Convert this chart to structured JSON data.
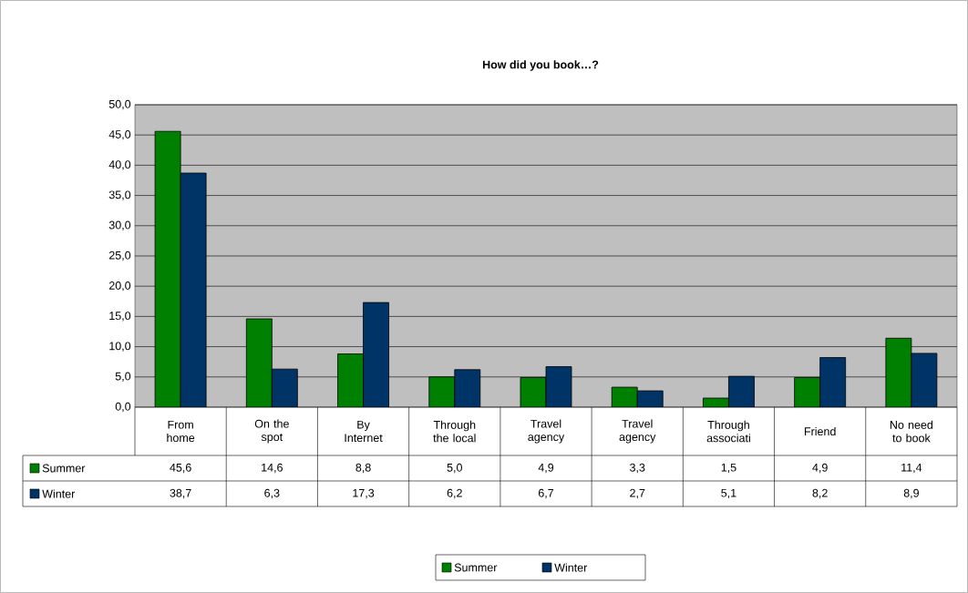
{
  "chart_data": {
    "type": "bar",
    "title": "How did you book…?",
    "categories": [
      "From home",
      "On the spot",
      "By Internet",
      "Through the local",
      "Travel agency",
      "Travel agency",
      "Through associati",
      "Friend",
      "No need to book"
    ],
    "series": [
      {
        "name": "Summer",
        "color": "#008000",
        "values": [
          45.6,
          14.6,
          8.8,
          5.0,
          4.9,
          3.3,
          1.5,
          4.9,
          11.4
        ],
        "value_labels": [
          "45,6",
          "14,6",
          "8,8",
          "5,0",
          "4,9",
          "3,3",
          "1,5",
          "4,9",
          "11,4"
        ]
      },
      {
        "name": "Winter",
        "color": "#003366",
        "values": [
          38.7,
          6.3,
          17.3,
          6.2,
          6.7,
          2.7,
          5.1,
          8.2,
          8.9
        ],
        "value_labels": [
          "38,7",
          "6,3",
          "17,3",
          "6,2",
          "6,7",
          "2,7",
          "5,1",
          "8,2",
          "8,9"
        ]
      }
    ],
    "ylim": [
      0,
      50
    ],
    "yticks": [
      {
        "value": 0,
        "label": "0,0"
      },
      {
        "value": 5,
        "label": "5,0"
      },
      {
        "value": 10,
        "label": "10,0"
      },
      {
        "value": 15,
        "label": "15,0"
      },
      {
        "value": 20,
        "label": "20,0"
      },
      {
        "value": 25,
        "label": "25,0"
      },
      {
        "value": 30,
        "label": "30,0"
      },
      {
        "value": 35,
        "label": "35,0"
      },
      {
        "value": 40,
        "label": "40,0"
      },
      {
        "value": 45,
        "label": "45,0"
      },
      {
        "value": 50,
        "label": "50,0"
      }
    ],
    "grid": "y",
    "legend": "bottom"
  }
}
